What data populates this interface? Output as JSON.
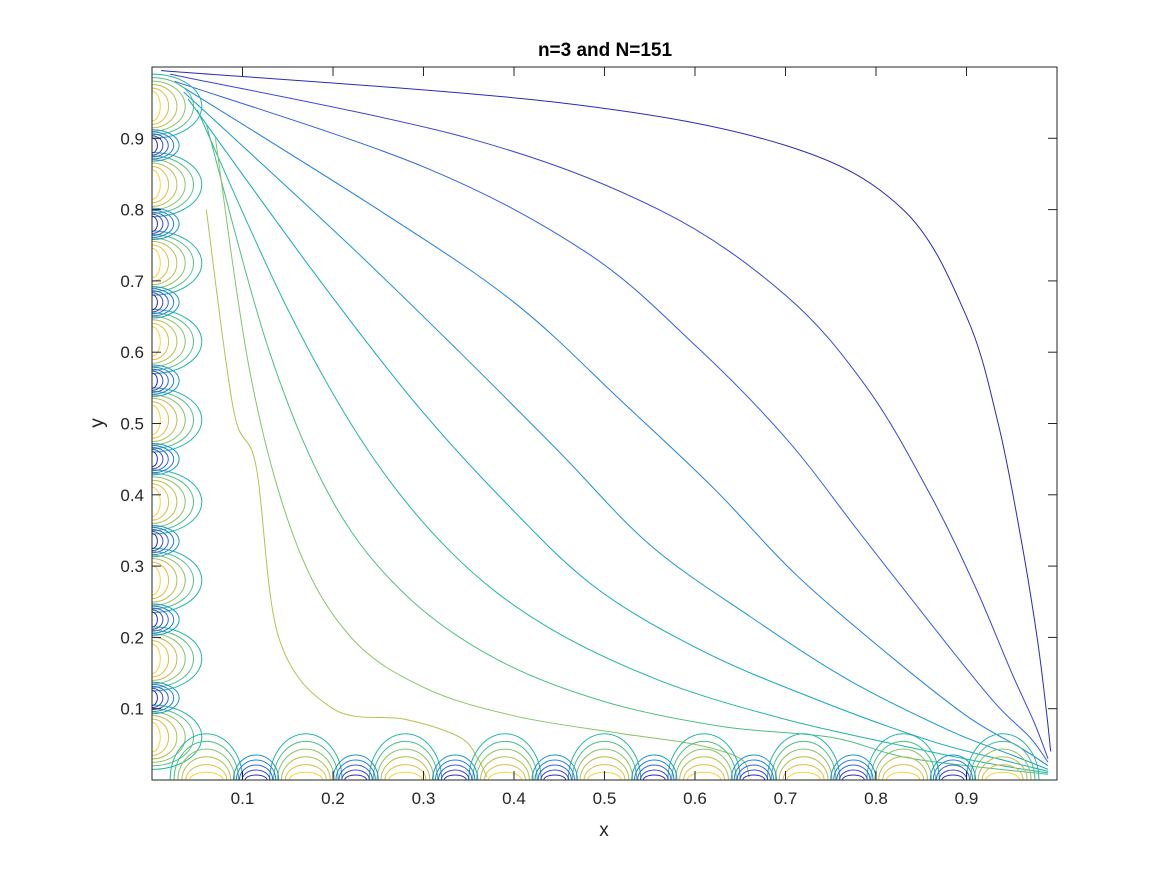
{
  "chart_data": {
    "type": "contour",
    "title": "n=3 and N=151",
    "xlabel": "x",
    "ylabel": "y",
    "xlim": [
      0,
      1
    ],
    "ylim": [
      0,
      1
    ],
    "xticks": [
      0.1,
      0.2,
      0.3,
      0.4,
      0.5,
      0.6,
      0.7,
      0.8,
      0.9
    ],
    "yticks": [
      0.1,
      0.2,
      0.3,
      0.4,
      0.5,
      0.6,
      0.7,
      0.8,
      0.9
    ],
    "xtick_labels": [
      "0.1",
      "0.2",
      "0.3",
      "0.4",
      "0.5",
      "0.6",
      "0.7",
      "0.8",
      "0.9"
    ],
    "ytick_labels": [
      "0.1",
      "0.2",
      "0.3",
      "0.4",
      "0.5",
      "0.6",
      "0.7",
      "0.8",
      "0.9"
    ],
    "grid": false,
    "colormap": "parula",
    "level_colors": [
      "#2b2ab8",
      "#3a46d6",
      "#3160e8",
      "#1f80e0",
      "#1898d0",
      "#10aab8",
      "#1fb8a0",
      "#4cc080",
      "#86c565",
      "#b8c04f",
      "#e2bc42",
      "#f9d331"
    ],
    "isolines": [
      {
        "level": 1,
        "points": [
          [
            0.01,
            0.995
          ],
          [
            0.45,
            0.95
          ],
          [
            0.7,
            0.89
          ],
          [
            0.83,
            0.8
          ],
          [
            0.9,
            0.65
          ],
          [
            0.935,
            0.5
          ],
          [
            0.96,
            0.34
          ],
          [
            0.978,
            0.2
          ],
          [
            0.988,
            0.1
          ],
          [
            0.993,
            0.04
          ]
        ]
      },
      {
        "level": 2,
        "points": [
          [
            0.02,
            0.99
          ],
          [
            0.35,
            0.9
          ],
          [
            0.56,
            0.8
          ],
          [
            0.7,
            0.68
          ],
          [
            0.79,
            0.55
          ],
          [
            0.86,
            0.4
          ],
          [
            0.91,
            0.27
          ],
          [
            0.95,
            0.15
          ],
          [
            0.975,
            0.08
          ],
          [
            0.99,
            0.03
          ]
        ]
      },
      {
        "level": 3,
        "points": [
          [
            0.025,
            0.98
          ],
          [
            0.3,
            0.86
          ],
          [
            0.48,
            0.74
          ],
          [
            0.6,
            0.61
          ],
          [
            0.7,
            0.48
          ],
          [
            0.78,
            0.35
          ],
          [
            0.86,
            0.22
          ],
          [
            0.93,
            0.11
          ],
          [
            0.97,
            0.06
          ],
          [
            0.99,
            0.025
          ]
        ]
      },
      {
        "level": 4,
        "points": [
          [
            0.03,
            0.975
          ],
          [
            0.25,
            0.8
          ],
          [
            0.4,
            0.67
          ],
          [
            0.52,
            0.53
          ],
          [
            0.62,
            0.41
          ],
          [
            0.71,
            0.29
          ],
          [
            0.81,
            0.18
          ],
          [
            0.9,
            0.09
          ],
          [
            0.96,
            0.045
          ],
          [
            0.99,
            0.02
          ]
        ]
      },
      {
        "level": 5,
        "points": [
          [
            0.035,
            0.965
          ],
          [
            0.21,
            0.76
          ],
          [
            0.34,
            0.6
          ],
          [
            0.45,
            0.46
          ],
          [
            0.55,
            0.33
          ],
          [
            0.66,
            0.23
          ],
          [
            0.77,
            0.14
          ],
          [
            0.88,
            0.07
          ],
          [
            0.95,
            0.035
          ],
          [
            0.99,
            0.015
          ]
        ]
      },
      {
        "level": 6,
        "points": [
          [
            0.04,
            0.955
          ],
          [
            0.18,
            0.71
          ],
          [
            0.29,
            0.53
          ],
          [
            0.39,
            0.39
          ],
          [
            0.49,
            0.27
          ],
          [
            0.61,
            0.18
          ],
          [
            0.74,
            0.11
          ],
          [
            0.86,
            0.055
          ],
          [
            0.94,
            0.028
          ],
          [
            0.99,
            0.012
          ]
        ]
      },
      {
        "level": 7,
        "points": [
          [
            0.05,
            0.94
          ],
          [
            0.15,
            0.66
          ],
          [
            0.24,
            0.46
          ],
          [
            0.33,
            0.32
          ],
          [
            0.43,
            0.22
          ],
          [
            0.56,
            0.14
          ],
          [
            0.7,
            0.085
          ],
          [
            0.84,
            0.045
          ],
          [
            0.93,
            0.022
          ],
          [
            0.99,
            0.01
          ]
        ]
      },
      {
        "level": 8,
        "points": [
          [
            0.06,
            0.92
          ],
          [
            0.13,
            0.6
          ],
          [
            0.2,
            0.39
          ],
          [
            0.28,
            0.26
          ],
          [
            0.38,
            0.17
          ],
          [
            0.5,
            0.11
          ],
          [
            0.63,
            0.075
          ],
          [
            0.75,
            0.06
          ],
          [
            0.84,
            0.03
          ],
          [
            0.99,
            0.008
          ]
        ]
      },
      {
        "level": 9,
        "points": [
          [
            0.07,
            0.9
          ],
          [
            0.11,
            0.56
          ],
          [
            0.16,
            0.33
          ],
          [
            0.22,
            0.2
          ],
          [
            0.3,
            0.13
          ],
          [
            0.4,
            0.09
          ],
          [
            0.52,
            0.065
          ],
          [
            0.6,
            0.05
          ],
          [
            0.65,
            0.03
          ],
          [
            0.66,
            0.004
          ]
        ]
      },
      {
        "level": 10,
        "points": [
          [
            0.06,
            0.8
          ],
          [
            0.09,
            0.52
          ],
          [
            0.115,
            0.44
          ],
          [
            0.14,
            0.2
          ],
          [
            0.2,
            0.1
          ],
          [
            0.28,
            0.085
          ],
          [
            0.34,
            0.06
          ],
          [
            0.36,
            0.03
          ],
          [
            0.37,
            0.004
          ]
        ]
      }
    ]
  }
}
